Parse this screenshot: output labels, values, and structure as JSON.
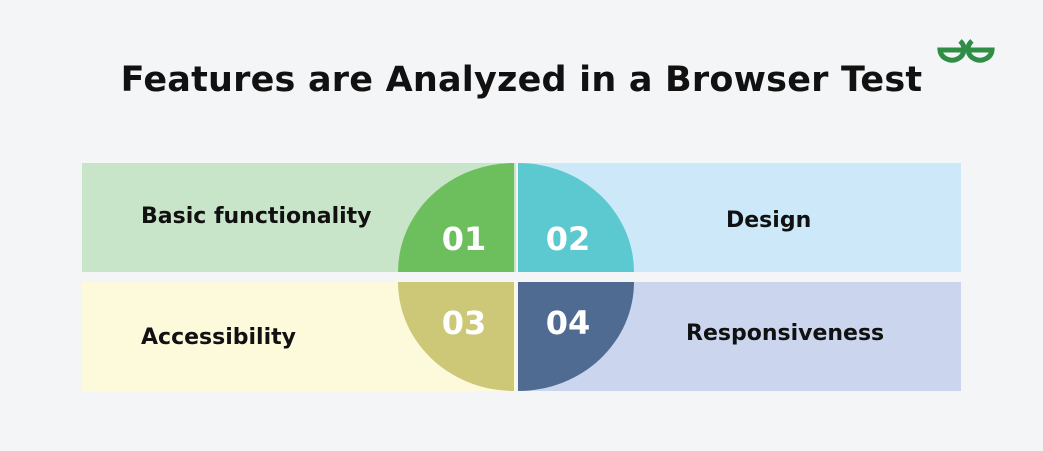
{
  "title": "Features are Analyzed in a Browser Test",
  "logo_icon": "geeksforgeeks-logo-icon",
  "features": [
    {
      "number": "01",
      "label": "Basic functionality",
      "band_color": "#c9e5c9",
      "quadrant_color": "#6dbf5d"
    },
    {
      "number": "02",
      "label": "Design",
      "band_color": "#cde9f9",
      "quadrant_color": "#5cc8d0"
    },
    {
      "number": "03",
      "label": "Accessibility",
      "band_color": "#fdfadc",
      "quadrant_color": "#cdc878"
    },
    {
      "number": "04",
      "label": "Responsiveness",
      "band_color": "#cbd6ee",
      "quadrant_color": "#506b92"
    }
  ],
  "colors": {
    "brand_green": "#2f8d46",
    "background": "#f4f5f7"
  }
}
